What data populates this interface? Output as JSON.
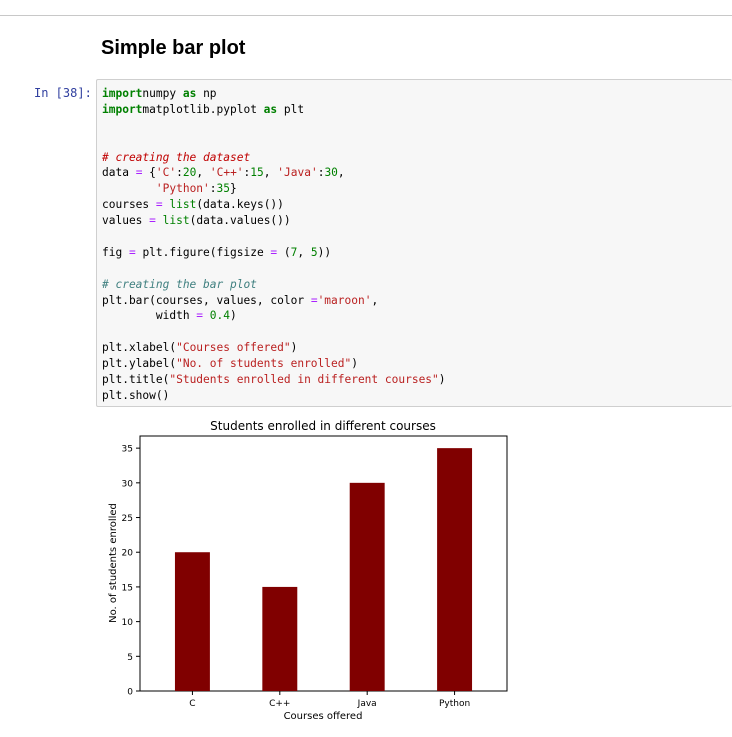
{
  "notebook": {
    "heading": "Simple bar plot",
    "prompt": "In [38]:",
    "code_lines": [
      [
        [
          "kw",
          "import"
        ],
        [
          "",
          "numpy "
        ],
        [
          "kw",
          "as"
        ],
        [
          "",
          " np"
        ]
      ],
      [
        [
          "kw",
          "import"
        ],
        [
          "",
          "matplotlib.pyplot "
        ],
        [
          "kw",
          "as"
        ],
        [
          "",
          " plt"
        ]
      ],
      [],
      [],
      [
        [
          "cm2",
          "# creating the dataset"
        ]
      ],
      [
        [
          "",
          "data "
        ],
        [
          "op",
          "="
        ],
        [
          "",
          " {"
        ],
        [
          "st",
          "'C'"
        ],
        [
          "",
          ":"
        ],
        [
          "nu",
          "20"
        ],
        [
          "",
          ", "
        ],
        [
          "st",
          "'C++'"
        ],
        [
          "",
          ":"
        ],
        [
          "nu",
          "15"
        ],
        [
          "",
          ", "
        ],
        [
          "st",
          "'Java'"
        ],
        [
          "",
          ":"
        ],
        [
          "nu",
          "30"
        ],
        [
          "",
          ","
        ]
      ],
      [
        [
          "",
          "        "
        ],
        [
          "st",
          "'Python'"
        ],
        [
          "",
          ":"
        ],
        [
          "nu",
          "35"
        ],
        [
          "",
          "}"
        ]
      ],
      [
        [
          "",
          "courses "
        ],
        [
          "op",
          "="
        ],
        [
          "",
          " "
        ],
        [
          "bi",
          "list"
        ],
        [
          "",
          "(data.keys())"
        ]
      ],
      [
        [
          "",
          "values "
        ],
        [
          "op",
          "="
        ],
        [
          "",
          " "
        ],
        [
          "bi",
          "list"
        ],
        [
          "",
          "(data.values())"
        ]
      ],
      [],
      [
        [
          "",
          "fig "
        ],
        [
          "op",
          "="
        ],
        [
          "",
          " plt.figure(figsize "
        ],
        [
          "op",
          "="
        ],
        [
          "",
          " ("
        ],
        [
          "nu",
          "7"
        ],
        [
          "",
          ", "
        ],
        [
          "nu",
          "5"
        ],
        [
          "",
          "))"
        ]
      ],
      [],
      [
        [
          "cm",
          "# creating the bar plot"
        ]
      ],
      [
        [
          "",
          "plt.bar(courses, values, color "
        ],
        [
          "op",
          "="
        ],
        [
          "st",
          "'maroon'"
        ],
        [
          "",
          ","
        ]
      ],
      [
        [
          "",
          "        width "
        ],
        [
          "op",
          "="
        ],
        [
          "",
          " "
        ],
        [
          "nu",
          "0.4"
        ],
        [
          "",
          ")"
        ]
      ],
      [],
      [
        [
          "",
          "plt.xlabel("
        ],
        [
          "st",
          "\"Courses offered\""
        ],
        [
          "",
          ")"
        ]
      ],
      [
        [
          "",
          "plt.ylabel("
        ],
        [
          "st",
          "\"No. of students enrolled\""
        ],
        [
          "",
          ")"
        ]
      ],
      [
        [
          "",
          "plt.title("
        ],
        [
          "st",
          "\"Students enrolled in different courses\""
        ],
        [
          "",
          ")"
        ]
      ],
      [
        [
          "",
          "plt.show()"
        ]
      ]
    ]
  },
  "chart_data": {
    "type": "bar",
    "title": "Students enrolled in different courses",
    "xlabel": "Courses offered",
    "ylabel": "No. of students enrolled",
    "categories": [
      "C",
      "C++",
      "Java",
      "Python"
    ],
    "values": [
      20,
      15,
      30,
      35
    ],
    "ylim": [
      0,
      36.75
    ],
    "yticks": [
      0,
      5,
      10,
      15,
      20,
      25,
      30,
      35
    ],
    "bar_color": "#800000",
    "grid": false
  }
}
